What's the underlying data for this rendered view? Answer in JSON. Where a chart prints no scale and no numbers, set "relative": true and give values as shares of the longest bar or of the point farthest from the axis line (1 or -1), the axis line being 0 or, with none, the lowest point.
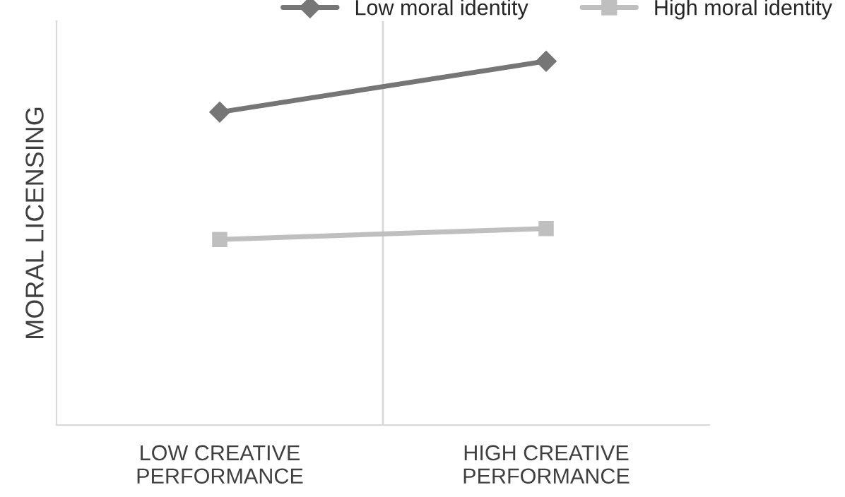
{
  "chart_data": {
    "type": "line",
    "relative": true,
    "ylabel": "MORAL LICENSING",
    "categories": [
      "LOW CREATIVE\nPERFORMANCE",
      "HIGH CREATIVE\nPERFORMANCE"
    ],
    "series": [
      {
        "name": "Low moral identity",
        "color": "#767676",
        "marker": "diamond",
        "values": [
          0.86,
          1.0
        ]
      },
      {
        "name": "High moral identity",
        "color": "#bfbfbf",
        "marker": "square",
        "values": [
          0.51,
          0.54
        ]
      }
    ],
    "legend": "top right",
    "grid": "x",
    "line_style": "solid"
  }
}
